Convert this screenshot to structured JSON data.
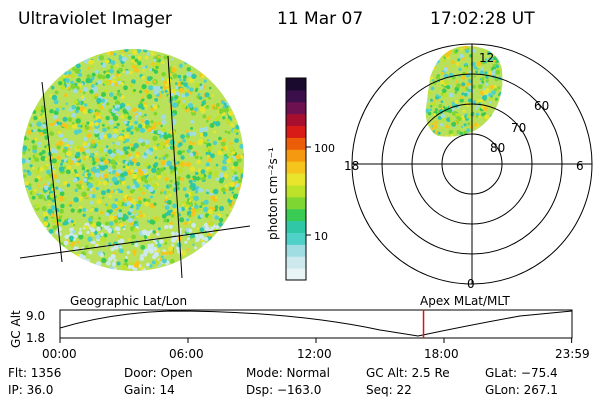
{
  "header": {
    "instrument": "Ultraviolet Imager",
    "date": "11 Mar 07",
    "time": "17:02:28 UT"
  },
  "colorbar": {
    "unit_label": "photon cm⁻²s⁻¹",
    "ticks": [
      {
        "label": "100",
        "value": 100
      },
      {
        "label": "10",
        "value": 10
      }
    ],
    "colors": [
      "#e8f4f6",
      "#cde9ee",
      "#9fdde3",
      "#4fd1c8",
      "#2fc7a6",
      "#3acb55",
      "#7dd631",
      "#bde22a",
      "#e8e52c",
      "#f6c51d",
      "#f59a10",
      "#ec5d0a",
      "#d81b16",
      "#a80f2e",
      "#6e1150",
      "#3b0f4a",
      "#1a0a2e"
    ]
  },
  "polar_plot": {
    "top_label": "12",
    "bottom_label": "0",
    "left_label": "18",
    "right_label": "6",
    "lat_labels": [
      "60",
      "70",
      "80"
    ]
  },
  "timeline": {
    "left_label": "Geographic Lat/Lon",
    "right_label": "Apex MLat/MLT",
    "y_axis_title": "GC Alt",
    "y_ticks": [
      "9.0",
      "1.8"
    ],
    "x_ticks": [
      "00:00",
      "06:00",
      "12:00",
      "18:00",
      "23:59"
    ],
    "marker_time_hours": 17.04
  },
  "status": {
    "flt": "Flt: 1356",
    "ip": "IP: 36.0",
    "door": "Door: Open",
    "gain": "Gain: 14",
    "mode": "Mode: Normal",
    "dsp": "Dsp: −163.0",
    "gc_alt": "GC Alt: 2.5 Re",
    "seq": "Seq: 22",
    "glat": "GLat: −75.4",
    "glon": "GLon: 267.1"
  }
}
